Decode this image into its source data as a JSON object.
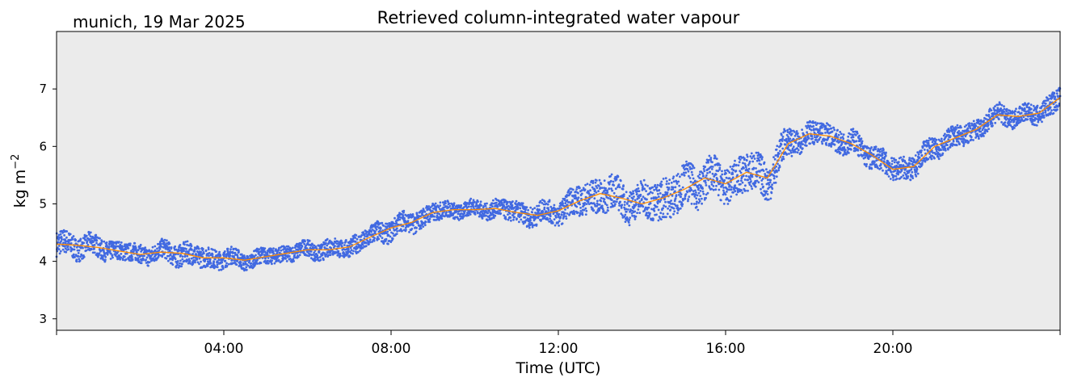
{
  "location_label": "munich, 19 Mar 2025",
  "chart_data": {
    "type": "scatter",
    "title": "Retrieved column-integrated water vapour",
    "xlabel": "Time (UTC)",
    "ylabel": "kg m",
    "ylabel_superscript": "−2",
    "xlim": [
      0,
      24
    ],
    "ylim": [
      2.8,
      8.0
    ],
    "x_ticks": [
      0,
      4,
      8,
      12,
      16,
      20,
      24
    ],
    "x_tick_labels": [
      "",
      "04:00",
      "08:00",
      "12:00",
      "16:00",
      "20:00",
      ""
    ],
    "y_ticks": [
      3,
      4,
      5,
      6,
      7
    ],
    "y_tick_labels": [
      "3",
      "4",
      "5",
      "6",
      "7"
    ],
    "grid": false,
    "background_color": "#ebebeb",
    "series": [
      {
        "kind": "scatter",
        "color": "#4169e1",
        "x": [
          0.0,
          0.5,
          1.0,
          1.5,
          2.0,
          2.5,
          3.0,
          3.5,
          4.0,
          4.5,
          5.0,
          5.5,
          6.0,
          6.5,
          7.0,
          7.5,
          8.0,
          8.5,
          9.0,
          9.5,
          10.0,
          10.5,
          11.0,
          11.5,
          12.0,
          12.5,
          13.0,
          13.5,
          14.0,
          14.5,
          15.0,
          15.5,
          16.0,
          16.5,
          17.0,
          17.5,
          18.0,
          18.5,
          19.0,
          19.5,
          20.0,
          20.5,
          21.0,
          21.5,
          22.0,
          22.5,
          23.0,
          23.5,
          24.0
        ],
        "y": [
          4.3,
          4.28,
          4.24,
          4.18,
          4.12,
          4.16,
          4.14,
          4.06,
          4.06,
          4.02,
          4.08,
          4.14,
          4.2,
          4.2,
          4.25,
          4.42,
          4.58,
          4.68,
          4.85,
          4.9,
          4.9,
          4.92,
          4.85,
          4.8,
          4.88,
          5.05,
          5.18,
          5.1,
          5.0,
          5.1,
          5.25,
          5.45,
          5.35,
          5.55,
          5.45,
          6.05,
          6.22,
          6.18,
          6.05,
          5.85,
          5.6,
          5.65,
          6.0,
          6.15,
          6.3,
          6.55,
          6.52,
          6.58,
          6.85
        ],
        "spread": [
          0.22,
          0.2,
          0.18,
          0.16,
          0.16,
          0.16,
          0.2,
          0.18,
          0.16,
          0.14,
          0.14,
          0.14,
          0.14,
          0.16,
          0.16,
          0.18,
          0.18,
          0.18,
          0.16,
          0.14,
          0.14,
          0.16,
          0.18,
          0.18,
          0.2,
          0.26,
          0.3,
          0.3,
          0.3,
          0.36,
          0.36,
          0.34,
          0.3,
          0.34,
          0.34,
          0.24,
          0.2,
          0.2,
          0.2,
          0.2,
          0.2,
          0.2,
          0.18,
          0.18,
          0.18,
          0.18,
          0.16,
          0.18,
          0.2
        ]
      },
      {
        "kind": "line",
        "color": "#ff8c00",
        "x": [
          0.0,
          0.5,
          1.0,
          1.5,
          2.0,
          2.5,
          3.0,
          3.5,
          4.0,
          4.5,
          5.0,
          5.5,
          6.0,
          6.5,
          7.0,
          7.5,
          8.0,
          8.5,
          9.0,
          9.5,
          10.0,
          10.5,
          11.0,
          11.5,
          12.0,
          12.5,
          13.0,
          13.5,
          14.0,
          14.5,
          15.0,
          15.5,
          16.0,
          16.5,
          17.0,
          17.5,
          18.0,
          18.5,
          19.0,
          19.5,
          20.0,
          20.5,
          21.0,
          21.5,
          22.0,
          22.5,
          23.0,
          23.5,
          24.0
        ],
        "y": [
          4.3,
          4.28,
          4.24,
          4.18,
          4.12,
          4.16,
          4.14,
          4.06,
          4.06,
          4.02,
          4.08,
          4.14,
          4.2,
          4.2,
          4.25,
          4.42,
          4.58,
          4.68,
          4.85,
          4.9,
          4.9,
          4.92,
          4.85,
          4.8,
          4.88,
          5.05,
          5.18,
          5.1,
          5.0,
          5.1,
          5.25,
          5.45,
          5.35,
          5.55,
          5.45,
          6.05,
          6.22,
          6.18,
          6.05,
          5.85,
          5.6,
          5.65,
          6.0,
          6.15,
          6.3,
          6.55,
          6.52,
          6.58,
          6.85
        ]
      }
    ]
  }
}
